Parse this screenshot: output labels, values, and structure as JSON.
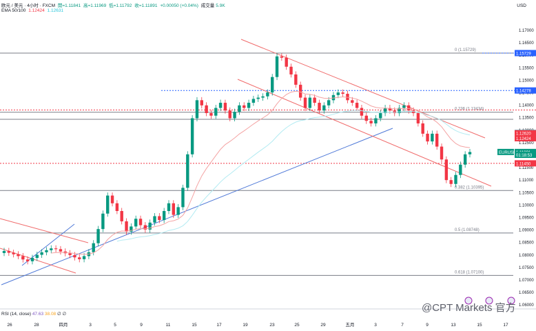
{
  "header": {
    "symbol": "欧元 / 美元 · 4小时 · FXCM",
    "open": "開=1.11841",
    "high": "高=1.11969",
    "low": "低=1.11792",
    "close": "收=1.11891",
    "change": "+0.00050 (+0.04%)",
    "volume": "成交量",
    "volume_value": "5.9K",
    "ema_label": "EMA 50/100",
    "ema50": "1.12424",
    "ema100": "1.12631"
  },
  "currency": "USD",
  "rsi_label": "RSI (14, close)",
  "rsi_a": "47.63",
  "rsi_b": "38.08",
  "rsi_tail": "∅ ∅",
  "watermark": "@CPT Markets 官方",
  "colors": {
    "up": "#089981",
    "down": "#f23645",
    "ema50": "#f4a3a3",
    "ema100": "#b2ebf2",
    "trend": "#4f79d8",
    "channel": "#f06a6a",
    "fib": "#787b86",
    "blue_dash": "#2962ff",
    "red_dash": "#f23645"
  },
  "chart_data": {
    "type": "candlestick",
    "y_range": [
      1.058,
      1.172
    ],
    "y_ticks": [
      "1.17000",
      "1.16500",
      "1.16000",
      "1.15500",
      "1.15000",
      "1.14500",
      "1.14000",
      "1.13500",
      "1.13000",
      "1.12500",
      "1.12000",
      "1.11500",
      "1.11000",
      "1.10500",
      "1.10000",
      "1.09500",
      "1.09000",
      "1.08500",
      "1.08000",
      "1.07500",
      "1.07000",
      "1.06500",
      "1.06000"
    ],
    "x_labels": [
      "26",
      "28",
      "四月",
      "3",
      "5",
      "9",
      "11",
      "15",
      "17",
      "19",
      "23",
      "25",
      "29",
      "五月",
      "3",
      "7",
      "9",
      "13",
      "15",
      "17"
    ],
    "fib_levels": [
      {
        "label": "0 (1.15729)",
        "price": 1.15729
      },
      {
        "label": "0.236 (1.13434)",
        "price": 1.13434
      },
      {
        "label": "0.382 (1.10395)",
        "price": 1.10395
      },
      {
        "label": "0.5 (1.08748)",
        "price": 1.08748
      },
      {
        "label": "0.618 (1.07100)",
        "price": 1.071
      }
    ],
    "extra_gray_line": 1.1316,
    "blue_dashed": 1.14278,
    "red_dashed": [
      1.13521,
      1.1145
    ],
    "price_badges": [
      {
        "label": "1.15729",
        "price": 1.15729,
        "color": "#2962ff"
      },
      {
        "label": "1.14278",
        "price": 1.14278,
        "color": "#2962ff"
      },
      {
        "label": "1.12631",
        "price": 1.12631,
        "color": "#26c6da"
      },
      {
        "label": "1.12620",
        "price": 1.1262,
        "color": "#f23645"
      },
      {
        "label": "1.12424",
        "price": 1.12424,
        "color": "#f23645"
      },
      {
        "label": "EURUSD",
        "price": 1.11891,
        "color": "#089981"
      },
      {
        "label": "1.11891",
        "price": 1.11891,
        "color": "#089981"
      },
      {
        "label": "01:18:53",
        "price": 1.1178,
        "color": "#089981"
      },
      {
        "label": "1.11450",
        "price": 1.1145,
        "color": "#f23645"
      }
    ],
    "closes": [
      1.0805,
      1.0798,
      1.0792,
      1.0785,
      1.0772,
      1.0765,
      1.0778,
      1.079,
      1.08,
      1.0808,
      1.0815,
      1.0812,
      1.0803,
      1.0796,
      1.0789,
      1.078,
      1.0773,
      1.0785,
      1.08,
      1.0835,
      1.089,
      1.095,
      1.102,
      1.099,
      1.096,
      1.092,
      1.088,
      1.09,
      1.093,
      1.0905,
      1.0888,
      1.0915,
      1.094,
      1.0925,
      1.096,
      1.099,
      1.0945,
      1.0975,
      1.105,
      1.118,
      1.132,
      1.139,
      1.137,
      1.134,
      1.133,
      1.136,
      1.138,
      1.135,
      1.132,
      1.1345,
      1.137,
      1.136,
      1.138,
      1.1395,
      1.14,
      1.1405,
      1.142,
      1.148,
      1.156,
      1.1555,
      1.152,
      1.149,
      1.145,
      1.14,
      1.136,
      1.14,
      1.138,
      1.135,
      1.137,
      1.139,
      1.141,
      1.142,
      1.1415,
      1.139,
      1.138,
      1.136,
      1.133,
      1.131,
      1.13,
      1.132,
      1.134,
      1.136,
      1.135,
      1.134,
      1.136,
      1.137,
      1.135,
      1.134,
      1.13,
      1.126,
      1.123,
      1.126,
      1.121,
      1.116,
      1.108,
      1.1065,
      1.11,
      1.114,
      1.118,
      1.1189
    ]
  }
}
